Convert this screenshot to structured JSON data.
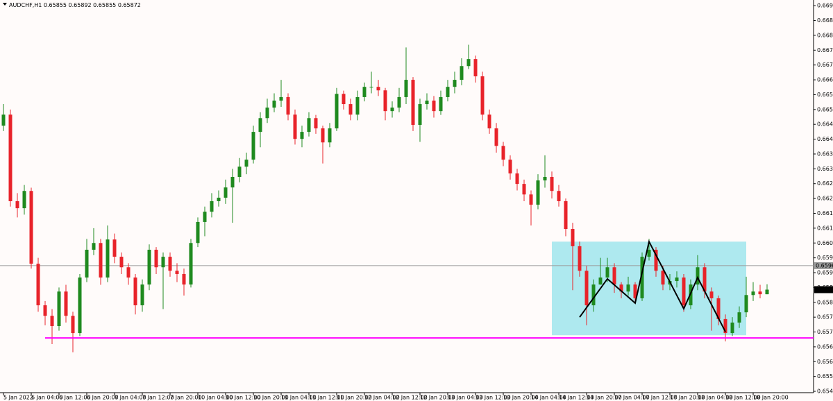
{
  "chart_data": {
    "type": "candlestick",
    "title": "AUDCHF,H1",
    "categories": [
      "5 Jan 2022",
      null,
      null,
      null,
      "6 Jan 04:00",
      null,
      null,
      null,
      "6 Jan 12:00",
      null,
      null,
      null,
      "6 Jan 20:00",
      null,
      null,
      null,
      "7 Jan 04:00",
      null,
      null,
      null,
      "7 Jan 12:00",
      null,
      null,
      null,
      "7 Jan 20:00",
      null,
      null,
      null,
      "10 Jan 04:00",
      null,
      null,
      null,
      "10 Jan 12:00",
      null,
      null,
      null,
      "10 Jan 20:00",
      null,
      null,
      null,
      "11 Jan 04:00",
      null,
      null,
      null,
      "11 Jan 12:00",
      null,
      null,
      null,
      "11 Jan 20:00",
      null,
      null,
      null,
      "12 Jan 04:00",
      null,
      null,
      null,
      "12 Jan 12:00",
      null,
      null,
      null,
      "12 Jan 20:00",
      null,
      null,
      null,
      "13 Jan 04:00",
      null,
      null,
      null,
      "13 Jan 12:00",
      null,
      null,
      null,
      "13 Jan 20:00",
      null,
      null,
      null,
      "14 Jan 04:00",
      null,
      null,
      null,
      "14 Jan 12:00",
      null,
      null,
      null,
      "14 Jan 20:00",
      null,
      null,
      null,
      "17 Jan 04:00",
      null,
      null,
      null,
      "17 Jan 12:00",
      null,
      null,
      null,
      "17 Jan 20:00",
      null,
      null,
      null,
      "18 Jan 04:00",
      null,
      null,
      null,
      "18 Jan 12:00",
      null,
      null,
      null,
      "18 Jan 20:00",
      null,
      null
    ],
    "open": [
      0.6648,
      0.66521,
      0.662,
      0.66174,
      0.66238,
      0.65968,
      0.65814,
      0.65775,
      0.65737,
      0.65865,
      0.65775,
      0.65711,
      0.65917,
      0.6602,
      0.66045,
      0.65917,
      0.66058,
      0.65994,
      0.65955,
      0.65917,
      0.65814,
      0.65891,
      0.6602,
      0.65955,
      0.65994,
      0.65942,
      0.6593,
      0.65891,
      0.66045,
      0.66123,
      0.66161,
      0.662,
      0.66213,
      0.66251,
      0.6629,
      0.66328,
      0.66354,
      0.66457,
      0.66508,
      0.66547,
      0.66573,
      0.66586,
      0.66521,
      0.66431,
      0.66457,
      0.66508,
      0.6647,
      0.66418,
      0.6647,
      0.66598,
      0.6656,
      0.66521,
      0.66586,
      0.66624,
      0.66624,
      0.66611,
      0.66534,
      0.66547,
      0.66586,
      0.6665,
      0.66483,
      0.6656,
      0.66573,
      0.66534,
      0.66586,
      0.66624,
      0.6665,
      0.66701,
      0.66727,
      0.66663,
      0.66521,
      0.6647,
      0.66405,
      0.66354,
      0.66303,
      0.66264,
      0.66225,
      0.66187,
      0.66277,
      0.6629,
      0.66238,
      0.662,
      0.66097,
      0.66033,
      0.65942,
      0.65814,
      0.65891,
      0.65917,
      0.65955,
      0.65891,
      0.65865,
      0.65891,
      0.6584,
      0.65994,
      0.6602,
      0.65942,
      0.65891,
      0.65904,
      0.65917,
      0.65814,
      0.65891,
      0.65955,
      0.65865,
      0.6584,
      0.65763,
      0.65711,
      0.6575,
      0.65788,
      0.65852,
      0.65865,
      0.65855
    ],
    "high": [
      0.6656,
      0.6654,
      0.6623,
      0.6626,
      0.6625,
      0.6599,
      0.6583,
      0.658,
      0.6588,
      0.6589,
      0.6579,
      0.6593,
      0.6606,
      0.661,
      0.6606,
      0.6611,
      0.6608,
      0.6601,
      0.6597,
      0.6593,
      0.6591,
      0.6604,
      0.6603,
      0.6601,
      0.6601,
      0.6597,
      0.6595,
      0.6606,
      0.6614,
      0.6618,
      0.6623,
      0.6624,
      0.6628,
      0.6632,
      0.6636,
      0.6638,
      0.6648,
      0.6653,
      0.6658,
      0.666,
      0.6665,
      0.666,
      0.6654,
      0.6648,
      0.6653,
      0.6652,
      0.6648,
      0.6649,
      0.6662,
      0.6661,
      0.6658,
      0.6661,
      0.6664,
      0.6668,
      0.6665,
      0.6662,
      0.6657,
      0.6662,
      0.6677,
      0.6666,
      0.6658,
      0.666,
      0.6659,
      0.6661,
      0.6665,
      0.6668,
      0.6673,
      0.6678,
      0.6674,
      0.6668,
      0.6654,
      0.6649,
      0.6642,
      0.6637,
      0.6632,
      0.6628,
      0.6624,
      0.663,
      0.6637,
      0.6631,
      0.6626,
      0.6621,
      0.6612,
      0.6605,
      0.6596,
      0.6591,
      0.6599,
      0.6599,
      0.6597,
      0.659,
      0.6592,
      0.659,
      0.6601,
      0.6606,
      0.6603,
      0.6596,
      0.6593,
      0.6594,
      0.6593,
      0.6591,
      0.66,
      0.6597,
      0.6588,
      0.6585,
      0.6578,
      0.6577,
      0.6581,
      0.6592,
      0.659,
      0.6589,
      0.65892
    ],
    "low": [
      0.6646,
      0.6618,
      0.6614,
      0.6615,
      0.6595,
      0.6579,
      0.6574,
      0.6567,
      0.6572,
      0.6575,
      0.6564,
      0.657,
      0.659,
      0.66,
      0.6589,
      0.659,
      0.6597,
      0.6593,
      0.6589,
      0.6578,
      0.6579,
      0.6587,
      0.6593,
      0.658,
      0.6592,
      0.659,
      0.6585,
      0.6588,
      0.6603,
      0.6607,
      0.6614,
      0.6618,
      0.6619,
      0.6612,
      0.6627,
      0.663,
      0.6634,
      0.664,
      0.6649,
      0.6653,
      0.6655,
      0.665,
      0.6641,
      0.664,
      0.6644,
      0.6645,
      0.6634,
      0.664,
      0.6646,
      0.6654,
      0.665,
      0.665,
      0.6657,
      0.666,
      0.6659,
      0.665,
      0.6651,
      0.6653,
      0.6656,
      0.6646,
      0.6642,
      0.6654,
      0.6651,
      0.6652,
      0.6657,
      0.666,
      0.6663,
      0.6669,
      0.6664,
      0.665,
      0.6645,
      0.6638,
      0.6633,
      0.6628,
      0.6624,
      0.662,
      0.6611,
      0.6617,
      0.6625,
      0.6621,
      0.6618,
      0.6607,
      0.6587,
      0.6592,
      0.6574,
      0.6579,
      0.6589,
      0.659,
      0.6586,
      0.6584,
      0.6585,
      0.6582,
      0.6583,
      0.6598,
      0.6592,
      0.6587,
      0.6587,
      0.6588,
      0.6579,
      0.658,
      0.6587,
      0.6584,
      0.6572,
      0.6574,
      0.6568,
      0.657,
      0.6573,
      0.6577,
      0.6583,
      0.6584,
      0.65855
    ],
    "close": [
      0.66521,
      0.662,
      0.66174,
      0.66238,
      0.65968,
      0.65814,
      0.65775,
      0.65737,
      0.65865,
      0.65775,
      0.65711,
      0.65917,
      0.6602,
      0.66045,
      0.65917,
      0.66058,
      0.65994,
      0.65955,
      0.65917,
      0.65814,
      0.65891,
      0.6602,
      0.65955,
      0.65994,
      0.65942,
      0.6593,
      0.65891,
      0.66045,
      0.66123,
      0.66161,
      0.662,
      0.66213,
      0.66251,
      0.6629,
      0.66328,
      0.66354,
      0.66457,
      0.66508,
      0.66547,
      0.66573,
      0.66586,
      0.66521,
      0.66431,
      0.66457,
      0.66508,
      0.6647,
      0.66418,
      0.6647,
      0.66598,
      0.6656,
      0.66521,
      0.66586,
      0.66624,
      0.66624,
      0.66611,
      0.66534,
      0.66547,
      0.66586,
      0.6665,
      0.66483,
      0.6656,
      0.66573,
      0.66534,
      0.66586,
      0.66624,
      0.6665,
      0.66701,
      0.66727,
      0.66663,
      0.66521,
      0.6647,
      0.66405,
      0.66354,
      0.66303,
      0.66264,
      0.66225,
      0.66187,
      0.66277,
      0.6629,
      0.66238,
      0.662,
      0.66097,
      0.66033,
      0.65942,
      0.65814,
      0.65891,
      0.65917,
      0.65955,
      0.65891,
      0.65865,
      0.65891,
      0.6584,
      0.65994,
      0.6602,
      0.65942,
      0.65891,
      0.65904,
      0.65917,
      0.65814,
      0.65891,
      0.65955,
      0.65865,
      0.6584,
      0.65763,
      0.65711,
      0.6575,
      0.65788,
      0.65852,
      0.65865,
      0.65855,
      0.65872
    ],
    "up_color": "#1f8a1f",
    "down_color": "#e8232a",
    "ylim": [
      0.6549,
      0.66946
    ],
    "yticks": [
      0.66925,
      {
        "value": 0.6687,
        "label": "0.66870"
      },
      0.66815,
      {
        "value": 0.6676,
        "label": "0.66760"
      },
      0.66705,
      {
        "value": 0.6665,
        "label": "0.66650"
      },
      0.66595,
      {
        "value": 0.6654,
        "label": "0.66540"
      },
      0.66485,
      {
        "value": 0.6643,
        "label": "0.66430"
      },
      0.66375,
      {
        "value": 0.6632,
        "label": "0.66320"
      },
      0.66265,
      {
        "value": 0.6621,
        "label": "0.66210"
      },
      0.66155,
      {
        "value": 0.661,
        "label": "0.66100"
      },
      0.66045,
      {
        "value": 0.6599,
        "label": "0.65990"
      },
      0.65935,
      {
        "value": 0.6588,
        "label": "0.65880"
      },
      0.65825,
      {
        "value": 0.6577,
        "label": "0.65770"
      },
      0.65715,
      {
        "value": 0.6566,
        "label": "0.65660"
      },
      0.65605,
      {
        "value": 0.6555,
        "label": "0.65550"
      },
      0.65495
    ],
    "reference_line": {
      "value": 0.65961,
      "color": "#9a9a9a"
    },
    "support_line": {
      "value": 0.65693,
      "start": 6,
      "color": "#ff00ff"
    },
    "range_box": {
      "x": [
        79,
        107
      ],
      "y": [
        0.65703,
        0.6605
      ],
      "color": "#aee9ef"
    },
    "zigzag": {
      "x": [
        83,
        87,
        91,
        93,
        98,
        100,
        104
      ],
      "y": [
        0.6577,
        0.65912,
        0.65822,
        0.6605,
        0.65801,
        0.65917,
        0.65716
      ],
      "color": "#000000"
    }
  }
}
